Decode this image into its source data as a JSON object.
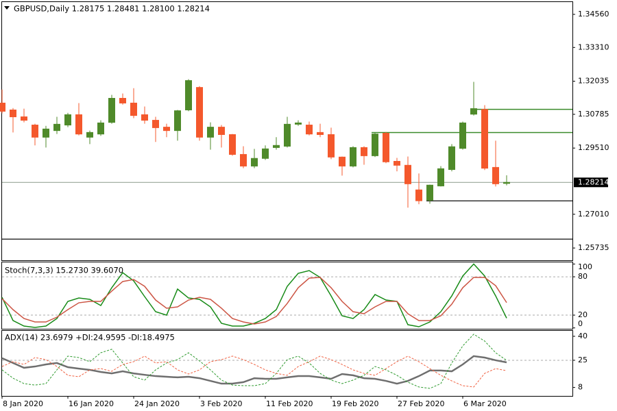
{
  "chart_data": [
    {
      "type": "candlestick",
      "title": "GBPUSD,Daily  1.28175 1.28481 1.28100 1.28214",
      "categories": [
        "8 Jan 2020",
        null,
        null,
        null,
        null,
        null,
        "16 Jan 2020",
        null,
        null,
        null,
        null,
        null,
        "24 Jan 2020",
        null,
        null,
        null,
        null,
        null,
        "3 Feb 2020",
        null,
        null,
        null,
        null,
        null,
        "11 Feb 2020",
        null,
        null,
        null,
        null,
        null,
        "19 Feb 2020",
        null,
        null,
        null,
        null,
        null,
        "27 Feb 2020",
        null,
        null,
        null,
        null,
        null,
        "6 Mar 2020",
        null,
        null,
        null,
        null
      ],
      "open": [
        1.3121,
        1.3095,
        1.3069,
        1.3038,
        1.2992,
        1.3017,
        1.3038,
        1.3077,
        1.2992,
        1.3004,
        1.3048,
        1.3139,
        1.3121,
        1.3077,
        1.3056,
        1.303,
        1.3017,
        1.3095,
        1.318,
        1.2992,
        1.303,
        1.3002,
        1.2927,
        1.2883,
        1.2912,
        1.2953,
        1.2958,
        1.3041,
        1.3038,
        1.301,
        1.3002,
        1.2917,
        1.2883,
        1.2953,
        1.2922,
        1.3007,
        1.2901,
        1.2886,
        1.2793,
        1.2754,
        1.2808,
        1.287,
        1.295,
        1.3079,
        1.3097,
        1.2878,
        1.28175
      ],
      "high": [
        1.3172,
        1.3102,
        1.31,
        1.3043,
        1.3035,
        1.3069,
        1.3084,
        1.3121,
        1.3017,
        1.3056,
        1.3152,
        1.3157,
        1.3177,
        1.3108,
        1.3069,
        1.3043,
        1.3095,
        1.3211,
        1.3185,
        1.3048,
        1.3038,
        1.3004,
        1.2958,
        1.2948,
        1.2961,
        1.2992,
        1.3069,
        1.3056,
        1.3051,
        1.3043,
        1.3028,
        1.2919,
        1.2958,
        1.2958,
        1.301,
        1.3012,
        1.2914,
        1.2919,
        1.2855,
        1.2813,
        1.2883,
        1.2966,
        1.3051,
        1.3201,
        1.3113,
        1.2979,
        1.28481
      ],
      "low": [
        1.3082,
        1.301,
        1.3048,
        1.2961,
        1.2953,
        1.3004,
        1.303,
        1.2999,
        1.2966,
        1.2997,
        1.3043,
        1.3115,
        1.3064,
        1.3043,
        1.2974,
        1.2992,
        1.2979,
        1.309,
        1.2979,
        1.2945,
        1.2953,
        1.2922,
        1.2875,
        1.2875,
        1.2906,
        1.2945,
        1.2953,
        1.3035,
        1.2999,
        1.2992,
        1.2909,
        1.2847,
        1.2878,
        1.2888,
        1.2917,
        1.2894,
        1.2863,
        1.2726,
        1.2739,
        1.2741,
        1.2806,
        1.2863,
        1.2945,
        1.3074,
        1.2868,
        1.2806,
        1.281
      ],
      "close": [
        1.309,
        1.3069,
        1.3056,
        1.2992,
        1.3023,
        1.3041,
        1.3077,
        1.3004,
        1.301,
        1.3046,
        1.3139,
        1.3121,
        1.3074,
        1.3056,
        1.3028,
        1.3017,
        1.3092,
        1.3206,
        1.2992,
        1.303,
        1.3002,
        1.2927,
        1.2883,
        1.2912,
        1.2948,
        1.2961,
        1.3041,
        1.3046,
        1.3004,
        1.3002,
        1.2917,
        1.2883,
        1.2953,
        1.2922,
        1.3004,
        1.2899,
        1.2886,
        1.2816,
        1.2752,
        1.2811,
        1.2873,
        1.2956,
        1.3046,
        1.31,
        1.2875,
        1.2816,
        1.28214
      ],
      "up_color": "#4f8a2a",
      "down_color": "#f4582c",
      "ylim": [
        1.25271,
        1.35025
      ],
      "yticks": [
        {
          "value": 1.3456,
          "label": "1.34560"
        },
        {
          "value": 1.3331,
          "label": "1.33310"
        },
        {
          "value": 1.32035,
          "label": "1.32035"
        },
        {
          "value": 1.30785,
          "label": "1.30785"
        },
        {
          "value": 1.2951,
          "label": "1.29510"
        },
        {
          "value": 1.2701,
          "label": "1.27010"
        },
        {
          "value": 1.25735,
          "label": "1.25735"
        }
      ],
      "current_price": {
        "value": 1.28214,
        "label": "1.28214"
      },
      "hlines": [
        {
          "value": 1.30973,
          "color": "#3a8a2a",
          "from": 43
        },
        {
          "value": 1.30095,
          "color": "#3a8a2a",
          "from": 34
        },
        {
          "value": 1.27515,
          "color": "#333333",
          "from": 39
        },
        {
          "value": 1.2607,
          "color": "#333333"
        }
      ]
    },
    {
      "type": "line",
      "title": "Stoch(7,3,3) 15.2730 39.6070",
      "series": [
        {
          "name": "Main",
          "color": "#168a16",
          "values": [
            47.9,
            11.5,
            2.9,
            0.8,
            2.9,
            14.7,
            41.5,
            46.8,
            44.7,
            35.0,
            62.9,
            86.5,
            73.6,
            49.0,
            25.4,
            20.0,
            60.8,
            46.8,
            44.7,
            32.9,
            7.2,
            2.9,
            2.9,
            7.2,
            14.7,
            28.6,
            65.1,
            85.4,
            89.7,
            79.0,
            50.1,
            19.0,
            14.7,
            28.6,
            52.2,
            43.6,
            41.5,
            5.0,
            1.8,
            9.3,
            25.4,
            50.1,
            81.2,
            100,
            81.2,
            50.1,
            15.273
          ]
        },
        {
          "name": "Signal",
          "color": "#cc5544",
          "values": [
            45.8,
            28.6,
            14.7,
            9.3,
            9.3,
            16.8,
            28.6,
            39.3,
            41.5,
            41.5,
            57.6,
            72.6,
            75.8,
            65.1,
            43.6,
            30.8,
            32.9,
            43.6,
            47.9,
            44.7,
            30.8,
            14.7,
            9.3,
            6.1,
            9.3,
            17.9,
            38.3,
            62.9,
            77.9,
            79.0,
            62.9,
            41.5,
            25.4,
            22.2,
            32.9,
            41.5,
            41.5,
            22.2,
            11.5,
            11.5,
            19.0,
            37.2,
            62.9,
            79.0,
            79.0,
            66.1,
            39.607
          ]
        }
      ],
      "ylim": [
        -1.4,
        102.6
      ],
      "yticks": [
        100,
        80,
        20,
        0
      ],
      "levels": [
        80,
        20
      ]
    },
    {
      "type": "line",
      "title": "ADX(14) 23.6979 +DI:24.9595 -DI:18.4975",
      "series": [
        {
          "name": "ADX",
          "color": "#6e6e6e",
          "line_width": 2.5,
          "values": [
            26.3,
            23.3,
            20.3,
            21.1,
            22.4,
            23.3,
            20.7,
            19.8,
            19.0,
            17.7,
            16.8,
            18.1,
            16.8,
            15.9,
            15.1,
            14.7,
            14.3,
            14.7,
            13.8,
            12.1,
            10.4,
            10.4,
            11.3,
            13.8,
            13.4,
            13.4,
            14.3,
            15.1,
            15.1,
            14.3,
            13.4,
            16.4,
            15.6,
            13.8,
            13.4,
            12.1,
            10.4,
            12.1,
            15.1,
            18.6,
            18.6,
            18.1,
            22.4,
            27.6,
            26.7,
            25.0,
            23.6979
          ]
        },
        {
          "name": "+DI",
          "color": "#2e9a2e",
          "dashed": true,
          "values": [
            19.0,
            13.8,
            10.4,
            9.5,
            10.4,
            19.0,
            27.6,
            26.7,
            24.1,
            29.7,
            31.9,
            23.3,
            14.7,
            12.6,
            19.0,
            23.3,
            25.4,
            29.7,
            24.6,
            19.0,
            12.6,
            9.5,
            9.1,
            9.1,
            10.4,
            16.8,
            25.4,
            27.6,
            23.3,
            16.8,
            12.6,
            10.4,
            12.6,
            15.6,
            21.1,
            19.0,
            15.6,
            11.3,
            8.3,
            7.4,
            10.4,
            23.3,
            34.0,
            41.3,
            37.0,
            29.7,
            24.9595
          ]
        },
        {
          "name": "-DI",
          "color": "#f06040",
          "dashed": true,
          "values": [
            21.1,
            24.1,
            22.4,
            26.7,
            25.4,
            21.1,
            15.6,
            14.7,
            19.0,
            19.8,
            18.1,
            22.4,
            24.1,
            27.6,
            23.3,
            24.1,
            19.0,
            16.4,
            19.0,
            24.1,
            25.4,
            27.6,
            25.4,
            22.4,
            19.0,
            16.8,
            15.6,
            21.1,
            24.1,
            27.6,
            25.4,
            22.4,
            19.0,
            16.8,
            15.6,
            19.8,
            24.1,
            27.6,
            24.1,
            19.8,
            15.6,
            12.1,
            9.1,
            8.3,
            16.8,
            19.8,
            18.4975
          ]
        }
      ],
      "ylim": [
        2.7,
        43.4
      ],
      "yticks": [
        40,
        25,
        8
      ],
      "levels": [
        25
      ]
    }
  ]
}
